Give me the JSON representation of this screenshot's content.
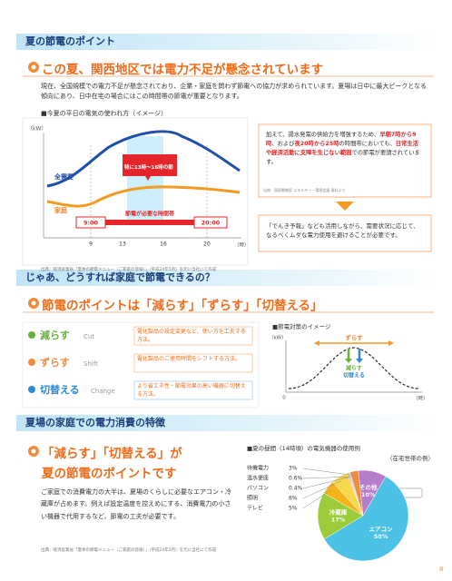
{
  "section1": {
    "header": "夏の節電のポイント",
    "heading": "この夏、関西地区では電力不足が懸念されています",
    "body": "現在、全国規模での電力不足が懸念されており、企業・家庭を問わず節電への協力が求められています。夏場は日中に最大ピークとなる傾向にあり、日中在宅の場合にはこの時間帯の節電が重要となります。",
    "demand_chart": {
      "title": "■今夏の平日の電気の使われ方（イメージ）",
      "unit": "（kW）",
      "x_unit": "（時）",
      "ticks": [
        "9",
        "13",
        "16",
        "20"
      ],
      "total_label": "全需要",
      "home_label": "家庭",
      "callout": "特に13時〜16時の節電が重要です",
      "period_label": "節電が必要な時間帯",
      "period_start": "9:00",
      "period_end": "20:00",
      "source": "出典：経済産業省「夏季の節電メニュー（ご家庭の皆様）」（平成24年5月）を元に当社にて作成"
    },
    "note_box": [
      "加えて、揚水発電の供給力を増強するため、",
      "早朝7時から9時",
      "、および",
      "夜20時から25時",
      "の時間帯においても、",
      "日常生活や経済活動に支障を生じない範囲",
      "での節電が要請されています。"
    ],
    "note_source": "出典：国家戦略室 エネルギー・環境会議 資料より",
    "advice_box": "「でんき予報」なども活用しながら、需要状況に応じて、なるべくムダな電力使用を避けることが必要です。"
  },
  "section2": {
    "header": "じゃあ、どうすれば家庭で節電できるの？",
    "heading": "節電のポイントは「減らす」「ずらす」「切替える」",
    "methods": [
      {
        "name": "減らす",
        "en": "Cut",
        "desc": "電化製品の設定変更など、使い方を工夫する方法。"
      },
      {
        "name": "ずらす",
        "en": "Shift",
        "desc": "電化製品のご使用時間をシフトする方法。"
      },
      {
        "name": "切替える",
        "en": "Change",
        "desc": "より省エネ性・節電効果の高い機器に切替える方法。"
      }
    ],
    "image_chart": {
      "title": "■節電対策のイメージ",
      "unit": "（kW）",
      "shift": "ずらす",
      "reduce": "減らす",
      "switch": "切替える",
      "zero": "0",
      "x_unit": "（時）"
    }
  },
  "section3": {
    "header": "夏場の家庭での電力消費の特徴",
    "heading": [
      "「減らす」「切替える」が",
      "夏の節電のポイントです"
    ],
    "body": "ご家庭での消費電力の大半は、夏場のくらしに必要なエアコン・冷蔵庫が占めます。例えば設定温度を控えめにする、消費電力の小さい機器で代用するなど、節電の工夫が必要です。",
    "source": "出典：経済産業省「夏季の節電メニュー（ご家庭の皆様）」（平成24年5月）を元に当社にて作成"
  },
  "chart_data": {
    "type": "pie",
    "title": "■夏の昼間（14時頃）の電気機器の使用例",
    "subtitle": "（在宅世帯の例）",
    "categories": [
      "エアコン",
      "冷蔵庫",
      "テレビ",
      "照明",
      "パソコン",
      "温水便座",
      "待機電力",
      "その他"
    ],
    "values": [
      58,
      17,
      5,
      6,
      0.4,
      0.6,
      3,
      10
    ],
    "value_labels": [
      "58%",
      "17%",
      "5%",
      "6%",
      "0.4%",
      "0.6%",
      "3%",
      "10%"
    ],
    "colors": [
      "#4cc1e6",
      "#9ccc3a",
      "#f5b31b",
      "#f7d84a",
      "#e86aa0",
      "#a6d9f0",
      "#f08a3c",
      "#b57cc8"
    ]
  },
  "page_number": "8"
}
